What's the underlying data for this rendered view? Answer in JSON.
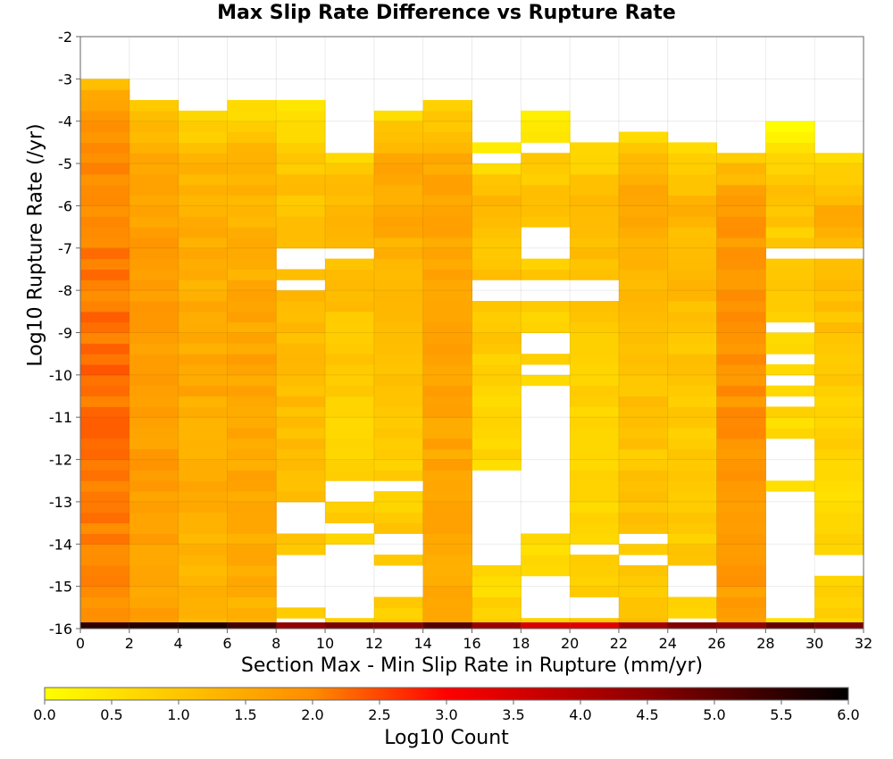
{
  "chart_data": {
    "type": "heatmap",
    "title": "Max Slip Rate Difference vs Rupture Rate",
    "xlabel": "Section Max - Min Slip Rate in Rupture (mm/yr)",
    "ylabel": "Log10 Rupture Rate (/yr)",
    "colorbar_label": "Log10 Count",
    "x_range": [
      0,
      32
    ],
    "y_range": [
      -16,
      -2
    ],
    "x_bin_width": 2,
    "y_bin_width": 0.25,
    "x_ticks": [
      "0",
      "2",
      "4",
      "6",
      "8",
      "10",
      "12",
      "14",
      "16",
      "18",
      "20",
      "22",
      "24",
      "26",
      "28",
      "30",
      "32"
    ],
    "y_ticks": [
      "-2",
      "-3",
      "-4",
      "-5",
      "-6",
      "-7",
      "-8",
      "-9",
      "-10",
      "-11",
      "-12",
      "-13",
      "-14",
      "-15",
      "-16"
    ],
    "colorbar_ticks": [
      "0.0",
      "0.5",
      "1.0",
      "1.5",
      "2.0",
      "2.5",
      "3.0",
      "3.5",
      "4.0",
      "4.5",
      "5.0",
      "5.5",
      "6.0"
    ],
    "colorbar_range": [
      0,
      6
    ],
    "grid": true,
    "bottom_row_values": [
      5.5,
      5.6,
      5.7,
      5.3,
      4.4,
      4.7,
      4.6,
      5.1,
      4.3,
      3.5,
      3.4,
      4.2,
      4.6,
      4.4,
      4.9,
      4.7
    ],
    "columns": [
      {
        "x": [
          0,
          2
        ],
        "ymax": -3.0,
        "base": 1.9,
        "peak": 2.25,
        "peak_y": -10.0
      },
      {
        "x": [
          2,
          4
        ],
        "ymax": -3.5,
        "base": 1.6,
        "peak": 1.75,
        "peak_y": -10.0
      },
      {
        "x": [
          4,
          6
        ],
        "ymax": -3.75,
        "base": 1.3,
        "peak": 1.5,
        "peak_y": -10.0
      },
      {
        "x": [
          6,
          8
        ],
        "ymax": -3.5,
        "base": 1.3,
        "peak": 1.6,
        "peak_y": -10.5
      },
      {
        "x": [
          8,
          10
        ],
        "ymax": -3.5,
        "base": 1.0,
        "peak": 1.2,
        "peak_y": -10.0
      },
      {
        "x": [
          10,
          12
        ],
        "ymax": -4.5,
        "base": 0.8,
        "peak": 1.3,
        "peak_y": -5.5
      },
      {
        "x": [
          12,
          14
        ],
        "ymax": -3.75,
        "base": 0.9,
        "peak": 1.6,
        "peak_y": -5.0
      },
      {
        "x": [
          14,
          16
        ],
        "ymax": -3.5,
        "base": 1.5,
        "peak": 1.6,
        "peak_y": -9.0
      },
      {
        "x": [
          16,
          18
        ],
        "ymax": -4.5,
        "base": 0.7,
        "peak": 1.2,
        "peak_y": -5.5
      },
      {
        "x": [
          18,
          20
        ],
        "ymax": -3.75,
        "base": 0.6,
        "peak": 1.0,
        "peak_y": -5.5
      },
      {
        "x": [
          20,
          22
        ],
        "ymax": -4.5,
        "base": 0.8,
        "peak": 1.3,
        "peak_y": -5.0
      },
      {
        "x": [
          22,
          24
        ],
        "ymax": -4.25,
        "base": 1.0,
        "peak": 1.5,
        "peak_y": -5.5
      },
      {
        "x": [
          24,
          26
        ],
        "ymax": -4.5,
        "base": 0.9,
        "peak": 1.3,
        "peak_y": -5.5
      },
      {
        "x": [
          26,
          28
        ],
        "ymax": -4.75,
        "base": 1.7,
        "peak": 1.9,
        "peak_y": -10.0
      },
      {
        "x": [
          28,
          30
        ],
        "ymax": -4.0,
        "base": 0.6,
        "peak": 1.0,
        "peak_y": -5.5
      },
      {
        "x": [
          30,
          32
        ],
        "ymax": -4.75,
        "base": 0.7,
        "peak": 1.4,
        "peak_y": -6.0
      }
    ],
    "empty_cells": [
      [
        8,
        -7.0
      ],
      [
        8,
        -7.25
      ],
      [
        8,
        -7.75
      ],
      [
        10,
        -4.5
      ],
      [
        10,
        -7.0
      ],
      [
        10,
        -12.5
      ],
      [
        10,
        -12.75
      ],
      [
        10,
        -13.5
      ],
      [
        10,
        -14.0
      ],
      [
        10,
        -14.25
      ],
      [
        10,
        -14.5
      ],
      [
        10,
        -14.75
      ],
      [
        10,
        -15.0
      ],
      [
        10,
        -15.25
      ],
      [
        10,
        -15.5
      ],
      [
        8,
        -13.0
      ],
      [
        8,
        -13.25
      ],
      [
        8,
        -13.5
      ],
      [
        8,
        -14.25
      ],
      [
        8,
        -14.5
      ],
      [
        8,
        -14.75
      ],
      [
        8,
        -15.0
      ],
      [
        8,
        -15.25
      ],
      [
        8,
        -15.75
      ],
      [
        12,
        -12.5
      ],
      [
        12,
        -13.75
      ],
      [
        12,
        -14.0
      ],
      [
        12,
        -14.5
      ],
      [
        12,
        -14.75
      ],
      [
        12,
        -15.0
      ],
      [
        16,
        -4.75
      ],
      [
        16,
        -7.75
      ],
      [
        16,
        -8.0
      ],
      [
        16,
        -12.25
      ],
      [
        16,
        -12.5
      ],
      [
        16,
        -12.75
      ],
      [
        16,
        -13.0
      ],
      [
        16,
        -13.25
      ],
      [
        16,
        -13.5
      ],
      [
        16,
        -13.75
      ],
      [
        16,
        -14.0
      ],
      [
        16,
        -14.25
      ],
      [
        18,
        -4.5
      ],
      [
        18,
        -6.5
      ],
      [
        18,
        -6.75
      ],
      [
        18,
        -7.0
      ],
      [
        18,
        -7.75
      ],
      [
        18,
        -8.0
      ],
      [
        18,
        -9.0
      ],
      [
        18,
        -9.25
      ],
      [
        18,
        -9.75
      ],
      [
        18,
        -10.25
      ],
      [
        18,
        -10.5
      ],
      [
        18,
        -10.75
      ],
      [
        18,
        -11.0
      ],
      [
        18,
        -11.25
      ],
      [
        18,
        -11.5
      ],
      [
        18,
        -11.75
      ],
      [
        18,
        -12.0
      ],
      [
        18,
        -12.25
      ],
      [
        18,
        -12.5
      ],
      [
        18,
        -12.75
      ],
      [
        18,
        -13.0
      ],
      [
        18,
        -13.25
      ],
      [
        18,
        -13.5
      ],
      [
        18,
        -14.75
      ],
      [
        18,
        -15.0
      ],
      [
        18,
        -15.25
      ],
      [
        18,
        -15.5
      ],
      [
        20,
        -7.75
      ],
      [
        20,
        -8.0
      ],
      [
        20,
        -14.0
      ],
      [
        20,
        -15.25
      ],
      [
        20,
        -15.5
      ],
      [
        22,
        -13.75
      ],
      [
        22,
        -14.25
      ],
      [
        24,
        -14.5
      ],
      [
        24,
        -14.75
      ],
      [
        24,
        -15.0
      ],
      [
        24,
        -15.75
      ],
      [
        28,
        -7.0
      ],
      [
        28,
        -8.75
      ],
      [
        28,
        -9.5
      ],
      [
        28,
        -10.0
      ],
      [
        28,
        -10.5
      ],
      [
        28,
        -11.5
      ],
      [
        28,
        -11.75
      ],
      [
        28,
        -12.0
      ],
      [
        28,
        -12.25
      ],
      [
        28,
        -12.75
      ],
      [
        28,
        -13.0
      ],
      [
        28,
        -13.25
      ],
      [
        28,
        -13.5
      ],
      [
        28,
        -13.75
      ],
      [
        28,
        -14.0
      ],
      [
        28,
        -14.25
      ],
      [
        28,
        -14.5
      ],
      [
        28,
        -14.75
      ],
      [
        28,
        -15.0
      ],
      [
        28,
        -15.25
      ],
      [
        28,
        -15.5
      ],
      [
        30,
        -7.0
      ],
      [
        30,
        -14.25
      ],
      [
        30,
        -14.5
      ]
    ]
  }
}
